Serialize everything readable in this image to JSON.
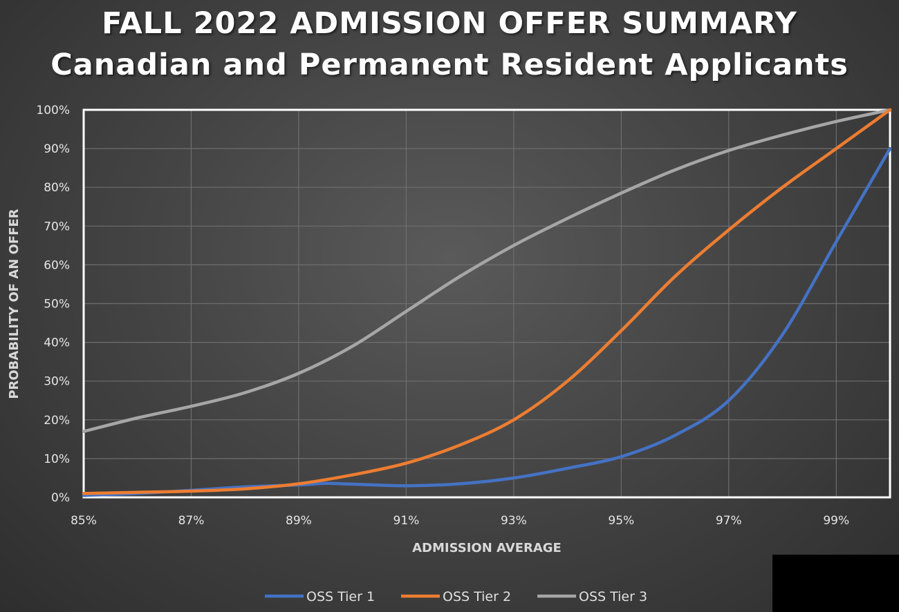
{
  "title": {
    "line1": "FALL 2022 ADMISSION OFFER SUMMARY",
    "line2": "Canadian and Permanent Resident Applicants"
  },
  "chart_data": {
    "type": "line",
    "title": "FALL 2022 ADMISSION OFFER SUMMARY",
    "subtitle": "Canadian and Permanent Resident Applicants",
    "xlabel": "ADMISSION AVERAGE",
    "ylabel": "PROBABILITY OF AN OFFER",
    "x_ticks": [
      "85%",
      "87%",
      "89%",
      "91%",
      "93%",
      "95%",
      "97%",
      "99%"
    ],
    "y_ticks": [
      "0%",
      "10%",
      "20%",
      "30%",
      "40%",
      "50%",
      "60%",
      "70%",
      "80%",
      "90%",
      "100%"
    ],
    "xlim": [
      85,
      100
    ],
    "ylim": [
      0,
      100
    ],
    "grid": true,
    "legend_position": "bottom",
    "series": [
      {
        "name": "OSS Tier 1",
        "color": "#4472c4",
        "x": [
          85,
          86,
          87,
          88,
          89,
          89.5,
          90,
          91,
          92,
          93,
          94,
          95,
          96,
          97,
          98,
          99,
          100
        ],
        "y": [
          0.5,
          1,
          1.8,
          2.7,
          3.2,
          3.6,
          3.4,
          3,
          3.5,
          5,
          7.5,
          10.5,
          16,
          25,
          42,
          66,
          90
        ]
      },
      {
        "name": "OSS Tier 2",
        "color": "#ed7d31",
        "x": [
          85,
          86,
          87,
          88,
          89,
          90,
          91,
          92,
          93,
          94,
          95,
          96,
          97,
          98,
          99,
          100
        ],
        "y": [
          1,
          1.3,
          1.6,
          2.2,
          3.5,
          5.8,
          8.8,
          13.5,
          20,
          30,
          43,
          57,
          69,
          80,
          90,
          100
        ]
      },
      {
        "name": "OSS Tier 3",
        "color": "#a6a6a6",
        "x": [
          85,
          86,
          87,
          88,
          89,
          90,
          91,
          92,
          93,
          94,
          95,
          96,
          97,
          98,
          99,
          100
        ],
        "y": [
          17,
          20.5,
          23.5,
          27,
          32,
          39,
          48,
          57,
          65,
          72,
          78.5,
          84.5,
          89.5,
          93.5,
          97,
          100
        ]
      }
    ]
  }
}
